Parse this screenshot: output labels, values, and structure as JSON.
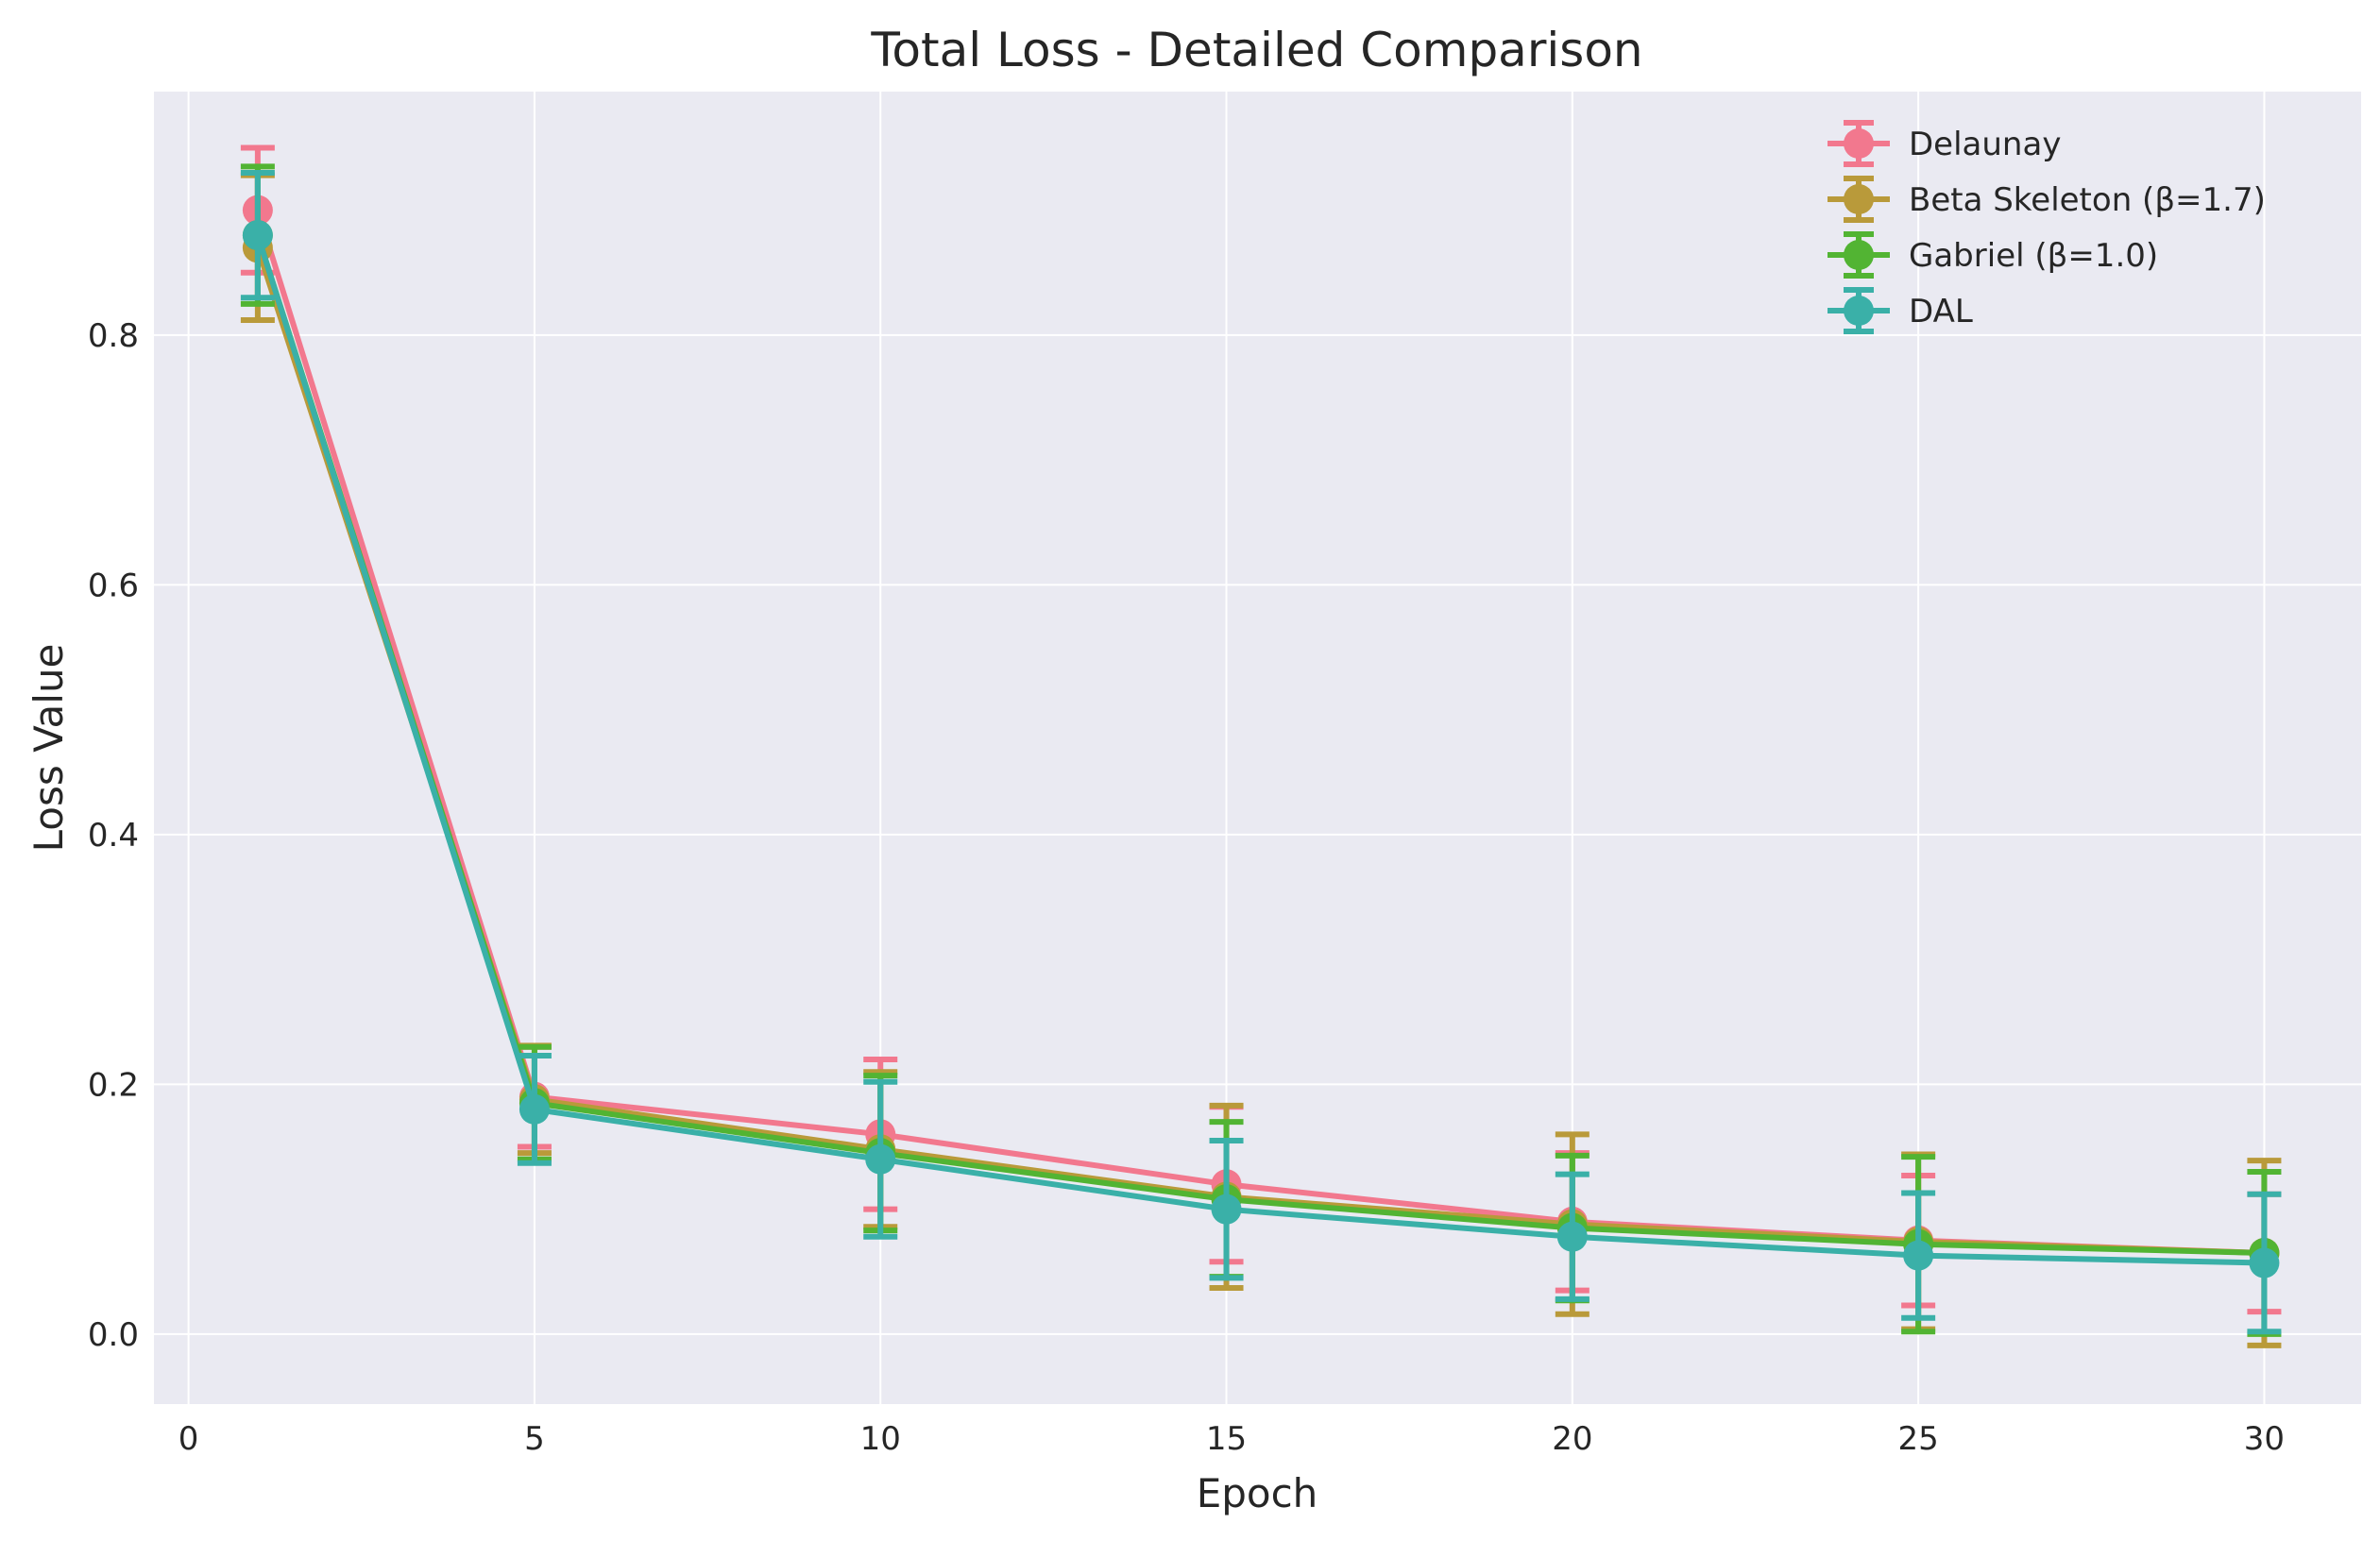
{
  "chart_data": {
    "type": "line",
    "title": "Total Loss - Detailed Comparison",
    "xlabel": "Epoch",
    "ylabel": "Loss Value",
    "xlim": [
      -0.5,
      31.4
    ],
    "ylim": [
      -0.056,
      0.995
    ],
    "xticks": [
      0,
      5,
      10,
      15,
      20,
      25,
      30
    ],
    "yticks": [
      0.0,
      0.2,
      0.4,
      0.6,
      0.8
    ],
    "xtick_labels": [
      "0",
      "5",
      "10",
      "15",
      "20",
      "25",
      "30"
    ],
    "ytick_labels": [
      "0.0",
      "0.2",
      "0.4",
      "0.6",
      "0.8"
    ],
    "grid": true,
    "legend_position": "top-right",
    "x": [
      1,
      5,
      10,
      15,
      20,
      25,
      30
    ],
    "series": [
      {
        "name": "Delaunay",
        "color": "#f2788e",
        "values": [
          0.9,
          0.19,
          0.16,
          0.12,
          0.09,
          0.075,
          0.065
        ],
        "errors": [
          0.05,
          0.04,
          0.06,
          0.062,
          0.055,
          0.052,
          0.047
        ]
      },
      {
        "name": "Beta Skeleton (β=1.7)",
        "color": "#b99a3a",
        "values": [
          0.87,
          0.188,
          0.148,
          0.11,
          0.088,
          0.074,
          0.065
        ],
        "errors": [
          0.058,
          0.043,
          0.062,
          0.073,
          0.072,
          0.07,
          0.074
        ]
      },
      {
        "name": "Gabriel (β=1.0)",
        "color": "#52b433",
        "values": [
          0.88,
          0.185,
          0.145,
          0.108,
          0.085,
          0.072,
          0.065
        ],
        "errors": [
          0.055,
          0.045,
          0.062,
          0.062,
          0.058,
          0.07,
          0.065
        ]
      },
      {
        "name": "DAL",
        "color": "#3ab0a8",
        "values": [
          0.88,
          0.18,
          0.14,
          0.1,
          0.078,
          0.063,
          0.057
        ],
        "errors": [
          0.05,
          0.043,
          0.062,
          0.055,
          0.05,
          0.05,
          0.055
        ]
      }
    ],
    "colors": {
      "plot_background": "#eaeaf2",
      "grid": "#ffffff",
      "text": "#262626"
    }
  }
}
